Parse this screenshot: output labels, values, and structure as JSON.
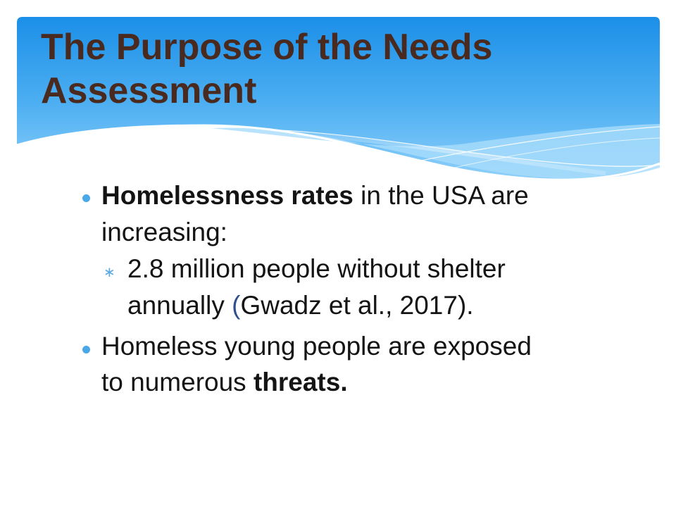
{
  "slide": {
    "title_line1": "The Purpose of the Needs",
    "title_line2": "Assessment",
    "bullets": [
      {
        "bold_text": "Homelessness rates",
        "text_after": " in the USA are",
        "line2": "increasing:",
        "sub": {
          "line1": "2.8 million people without shelter",
          "line2_start": "annually ",
          "paren_open": "(",
          "line2_rest": "Gwadz et al., 2017)."
        }
      },
      {
        "line1": "Homeless young people are exposed",
        "line2_start": "to numerous ",
        "bold_text": "threats."
      }
    ],
    "colors": {
      "title": "#4a2a1e",
      "header_top": "#1e90e6",
      "header_bottom": "#8fd0fa",
      "bullet": "#4aa8e6",
      "body_text": "#141414"
    }
  }
}
